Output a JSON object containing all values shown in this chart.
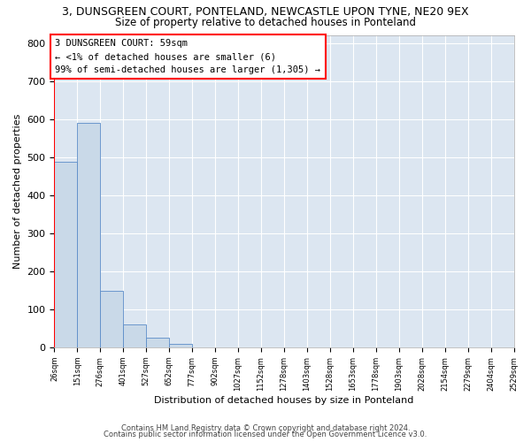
{
  "title1": "3, DUNSGREEN COURT, PONTELAND, NEWCASTLE UPON TYNE, NE20 9EX",
  "title2": "Size of property relative to detached houses in Ponteland",
  "xlabel": "Distribution of detached houses by size in Ponteland",
  "ylabel": "Number of detached properties",
  "bar_color": "#c9d9e8",
  "bar_edge_color": "#5b8cc8",
  "annotation_text": "3 DUNSGREEN COURT: 59sqm\n← <1% of detached houses are smaller (6)\n99% of semi-detached houses are larger (1,305) →",
  "bins": [
    26,
    151,
    276,
    401,
    527,
    652,
    777,
    902,
    1027,
    1152,
    1278,
    1403,
    1528,
    1653,
    1778,
    1903,
    2028,
    2154,
    2279,
    2404,
    2529
  ],
  "bar_heights": [
    488,
    590,
    148,
    61,
    25,
    10,
    0,
    0,
    0,
    0,
    0,
    0,
    0,
    0,
    0,
    0,
    0,
    0,
    0,
    0
  ],
  "tick_labels": [
    "26sqm",
    "151sqm",
    "276sqm",
    "401sqm",
    "527sqm",
    "652sqm",
    "777sqm",
    "902sqm",
    "1027sqm",
    "1152sqm",
    "1278sqm",
    "1403sqm",
    "1528sqm",
    "1653sqm",
    "1778sqm",
    "1903sqm",
    "2028sqm",
    "2154sqm",
    "2279sqm",
    "2404sqm",
    "2529sqm"
  ],
  "ylim": [
    0,
    820
  ],
  "yticks": [
    0,
    100,
    200,
    300,
    400,
    500,
    600,
    700,
    800
  ],
  "background_color": "#dce6f1",
  "footer1": "Contains HM Land Registry data © Crown copyright and database right 2024.",
  "footer2": "Contains public sector information licensed under the Open Government Licence v3.0."
}
